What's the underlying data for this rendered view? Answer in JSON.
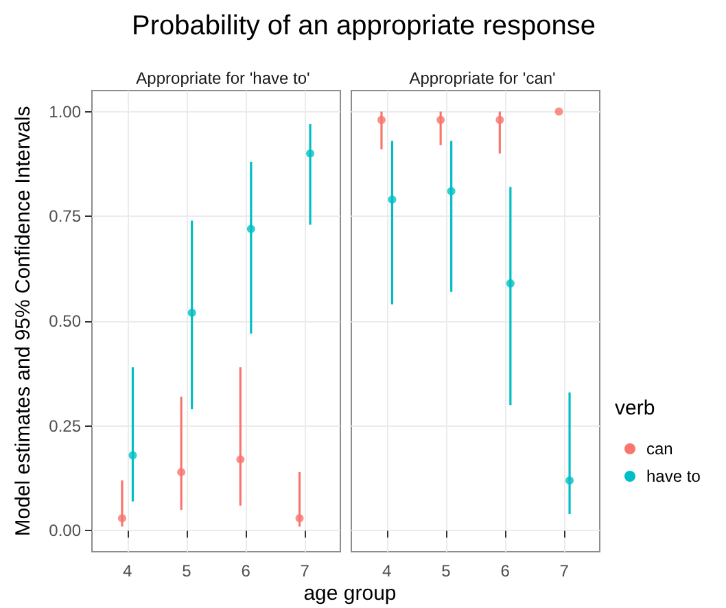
{
  "chart_data": [
    {
      "type": "scatter",
      "title": "Probability of an appropriate response",
      "subtitle": "Appropriate for 'have to'",
      "xlabel": "age group",
      "ylabel": "Model estimates and 95% Confidence Intervals",
      "categories": [
        "4",
        "5",
        "6",
        "7"
      ],
      "series": [
        {
          "color": "#f8766d",
          "values": [
            0.03,
            0.14,
            0.17,
            0.03
          ],
          "errors": [
            [
              0.01,
              0.12
            ],
            [
              0.05,
              0.32
            ],
            [
              0.06,
              0.39
            ],
            [
              0.01,
              0.14
            ]
          ]
        },
        {
          "color": "#00bfc4",
          "values": [
            0.18,
            0.52,
            0.72,
            0.9
          ],
          "errors": [
            [
              0.07,
              0.39
            ],
            [
              0.29,
              0.74
            ],
            [
              0.47,
              0.88
            ],
            [
              0.73,
              0.97
            ]
          ]
        }
      ],
      "ylim": [
        -0.05,
        1.05
      ],
      "yticks": [
        {
          "value": 0,
          "label": "0.00"
        },
        {
          "value": 0.25,
          "label": "0.25"
        },
        {
          "value": 0.5,
          "label": "0.50"
        },
        {
          "value": 0.75,
          "label": "0.75"
        },
        {
          "value": 1,
          "label": "1.00"
        }
      ],
      "grid": true,
      "marker": "circle"
    },
    {
      "type": "scatter",
      "subtitle": "Appropriate for 'can'",
      "legend_title": "verb",
      "categories": [
        "4",
        "5",
        "6",
        "7"
      ],
      "series": [
        {
          "name": "can",
          "color": "#f8766d",
          "values": [
            0.98,
            0.98,
            0.98,
            1.0
          ],
          "errors": [
            [
              0.91,
              1.0
            ],
            [
              0.92,
              1.0
            ],
            [
              0.9,
              1.0
            ],
            null
          ]
        },
        {
          "name": "have to",
          "color": "#00bfc4",
          "values": [
            0.79,
            0.81,
            0.59,
            0.12
          ],
          "errors": [
            [
              0.54,
              0.93
            ],
            [
              0.57,
              0.93
            ],
            [
              0.3,
              0.82
            ],
            [
              0.04,
              0.33
            ]
          ]
        }
      ],
      "ylim": [
        -0.05,
        1.05
      ],
      "yticks": [
        0,
        0.25,
        0.5,
        0.75,
        1
      ],
      "grid": true,
      "marker": "circle",
      "tick_labels": "x",
      "legend": "right"
    }
  ]
}
